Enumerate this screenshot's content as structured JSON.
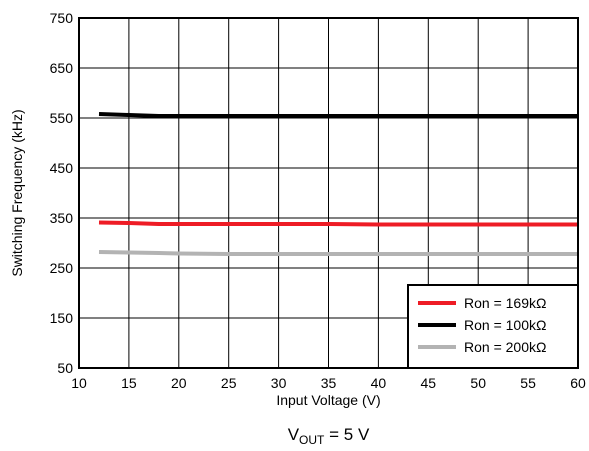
{
  "chart_data": {
    "type": "line",
    "title": "",
    "xlabel": "Input Voltage  (V)",
    "ylabel": "Switching Frequency (kHz)",
    "xlim": [
      10,
      60
    ],
    "ylim": [
      50,
      750
    ],
    "x_ticks": [
      10,
      15,
      20,
      25,
      30,
      35,
      40,
      45,
      50,
      55,
      60
    ],
    "y_ticks": [
      50,
      150,
      250,
      350,
      450,
      550,
      650,
      750
    ],
    "grid": true,
    "legend_position": "bottom-right",
    "series": [
      {
        "name": "Ron = 169kΩ",
        "color": "#ee1c25",
        "x": [
          12,
          15,
          18,
          20,
          25,
          30,
          35,
          40,
          45,
          50,
          55,
          60
        ],
        "y": [
          341,
          340,
          338,
          338,
          338,
          338,
          338,
          337,
          337,
          337,
          337,
          337
        ]
      },
      {
        "name": "Ron = 100kΩ",
        "color": "#000000",
        "x": [
          12,
          15,
          18,
          20,
          25,
          30,
          35,
          40,
          45,
          50,
          55,
          60
        ],
        "y": [
          558,
          556,
          554,
          554,
          554,
          554,
          554,
          554,
          554,
          554,
          554,
          554
        ]
      },
      {
        "name": "Ron = 200kΩ",
        "color": "#b3b3b3",
        "x": [
          12,
          15,
          18,
          20,
          25,
          30,
          35,
          40,
          45,
          50,
          55,
          60
        ],
        "y": [
          282,
          281,
          280,
          279,
          278,
          278,
          278,
          278,
          278,
          278,
          278,
          278
        ]
      }
    ]
  },
  "caption": {
    "main": "V",
    "sub": "OUT",
    "rest": " = 5 V"
  }
}
